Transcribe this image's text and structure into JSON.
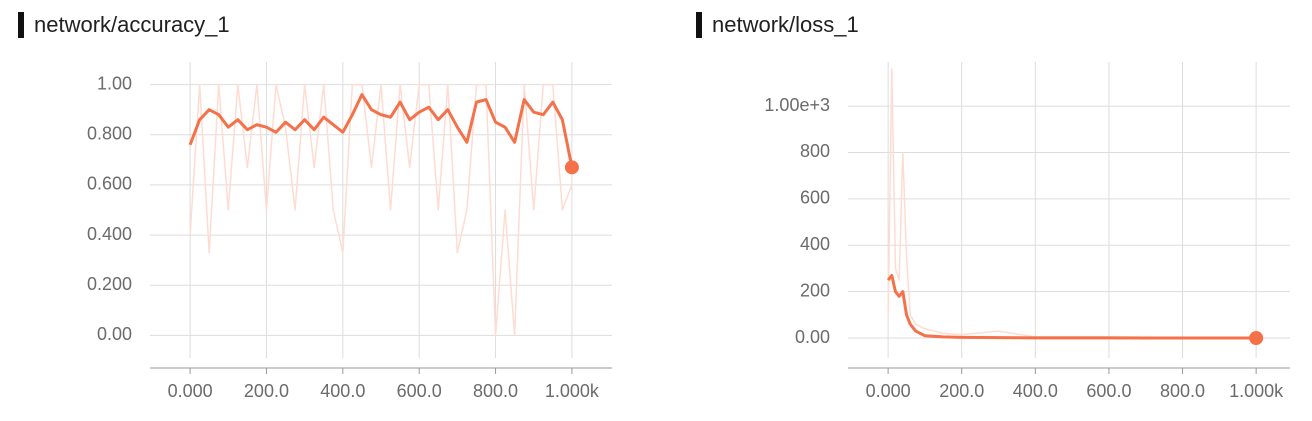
{
  "chart_data": [
    {
      "type": "line",
      "title": "network/accuracy_1",
      "x": [
        0,
        25,
        50,
        75,
        100,
        125,
        150,
        175,
        200,
        225,
        250,
        275,
        300,
        325,
        350,
        375,
        400,
        425,
        450,
        475,
        500,
        525,
        550,
        575,
        600,
        625,
        650,
        675,
        700,
        725,
        750,
        775,
        800,
        825,
        850,
        875,
        900,
        925,
        950,
        975,
        1000
      ],
      "series": [
        {
          "color": "#ffdcd2",
          "values": [
            0.4,
            1.0,
            0.33,
            1.0,
            0.5,
            1.0,
            0.67,
            1.0,
            0.5,
            1.0,
            0.83,
            0.5,
            1.0,
            0.67,
            1.0,
            0.5,
            0.33,
            1.0,
            1.0,
            0.67,
            1.0,
            0.5,
            1.0,
            0.67,
            1.0,
            1.0,
            0.5,
            1.0,
            0.33,
            0.5,
            1.0,
            1.0,
            0.0,
            0.5,
            0.0,
            1.0,
            0.5,
            1.0,
            1.0,
            0.5,
            0.6
          ]
        },
        {
          "color": "#f4714a",
          "values": [
            0.76,
            0.86,
            0.9,
            0.88,
            0.83,
            0.86,
            0.82,
            0.84,
            0.83,
            0.81,
            0.85,
            0.82,
            0.86,
            0.82,
            0.87,
            0.84,
            0.81,
            0.88,
            0.96,
            0.9,
            0.88,
            0.87,
            0.93,
            0.86,
            0.89,
            0.91,
            0.86,
            0.9,
            0.83,
            0.77,
            0.93,
            0.94,
            0.85,
            0.83,
            0.77,
            0.94,
            0.89,
            0.88,
            0.93,
            0.86,
            0.67
          ]
        }
      ],
      "xlim": [
        -105,
        1105
      ],
      "ylim": [
        -0.09,
        1.09
      ],
      "xticks": [
        {
          "value": 0,
          "label": "0.000"
        },
        {
          "value": 200,
          "label": "200.0"
        },
        {
          "value": 400,
          "label": "400.0"
        },
        {
          "value": 600,
          "label": "600.0"
        },
        {
          "value": 800,
          "label": "800.0"
        },
        {
          "value": 1000,
          "label": "1.000k"
        }
      ],
      "yticks": [
        {
          "value": 0,
          "label": "0.00"
        },
        {
          "value": 0.2,
          "label": "0.200"
        },
        {
          "value": 0.4,
          "label": "0.400"
        },
        {
          "value": 0.6,
          "label": "0.600"
        },
        {
          "value": 0.8,
          "label": "0.800"
        },
        {
          "value": 1,
          "label": "1.00"
        }
      ],
      "grid": true
    },
    {
      "type": "line",
      "title": "network/loss_1",
      "x": [
        0,
        10,
        20,
        30,
        40,
        50,
        60,
        75,
        100,
        150,
        200,
        300,
        400,
        600,
        800,
        1000
      ],
      "series": [
        {
          "color": "#ffdcd2",
          "values": [
            100,
            1160,
            300,
            250,
            800,
            350,
            100,
            60,
            40,
            20,
            15,
            30,
            5,
            5,
            3,
            1
          ]
        },
        {
          "color": "#f4714a",
          "values": [
            250,
            270,
            200,
            180,
            200,
            100,
            60,
            30,
            10,
            5,
            3,
            2,
            1,
            0.5,
            0.3,
            0.2
          ]
        }
      ],
      "xlim": [
        -109,
        1092
      ],
      "ylim": [
        -86,
        1190
      ],
      "xticks": [
        {
          "value": 0,
          "label": "0.000"
        },
        {
          "value": 200,
          "label": "200.0"
        },
        {
          "value": 400,
          "label": "400.0"
        },
        {
          "value": 600,
          "label": "600.0"
        },
        {
          "value": 800,
          "label": "800.0"
        },
        {
          "value": 1000,
          "label": "1.000k"
        }
      ],
      "yticks": [
        {
          "value": 0,
          "label": "0.00"
        },
        200,
        400,
        600,
        800,
        {
          "value": 1000,
          "label": "1.00e+3"
        }
      ],
      "grid": true
    }
  ]
}
